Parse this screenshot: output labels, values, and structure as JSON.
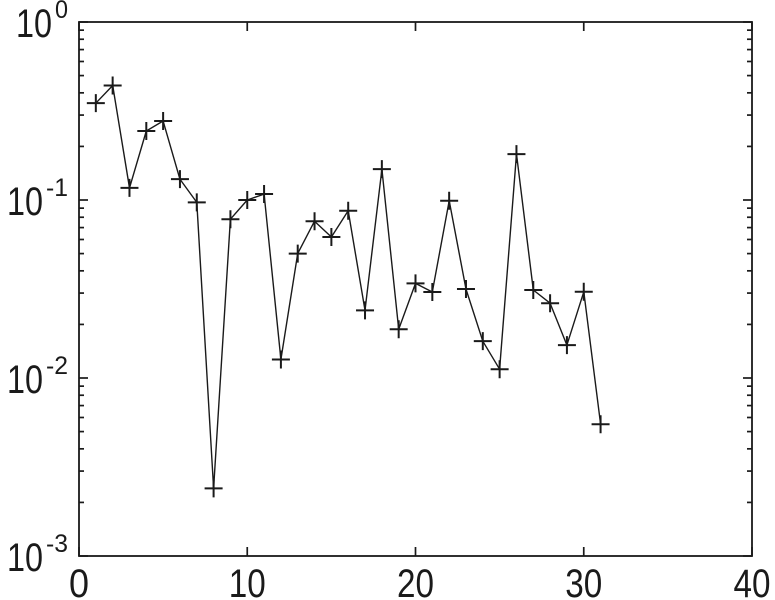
{
  "chart_data": {
    "type": "line",
    "title": "",
    "xlabel": "",
    "ylabel": "",
    "yscale": "log",
    "xlim": [
      0,
      40
    ],
    "ylim": [
      0.001,
      1
    ],
    "xticks": [
      0,
      10,
      20,
      30,
      40
    ],
    "xtick_labels": [
      "0",
      "10",
      "20",
      "30",
      "40"
    ],
    "ytick_exponents": [
      0,
      -1,
      -2,
      -3
    ],
    "ytick_labels": [
      "10^0",
      "10^-1",
      "10^-2",
      "10^-3"
    ],
    "grid": false,
    "legend": null,
    "marker": "plus",
    "line_color": "#1a1a1a",
    "axis_color": "#1a1a1a",
    "background_color": "#ffffff",
    "x": [
      1,
      2,
      3,
      4,
      5,
      6,
      7,
      8,
      9,
      10,
      11,
      12,
      13,
      14,
      15,
      16,
      17,
      18,
      19,
      20,
      21,
      22,
      23,
      24,
      25,
      26,
      27,
      28,
      29,
      30,
      31
    ],
    "y": [
      0.35,
      0.44,
      0.117,
      0.244,
      0.278,
      0.131,
      0.097,
      0.0024,
      0.078,
      0.1,
      0.108,
      0.0127,
      0.05,
      0.076,
      0.062,
      0.087,
      0.024,
      0.149,
      0.0188,
      0.034,
      0.0304,
      0.099,
      0.0316,
      0.0161,
      0.0112,
      0.181,
      0.0312,
      0.0263,
      0.0153,
      0.0305,
      0.0055
    ]
  }
}
